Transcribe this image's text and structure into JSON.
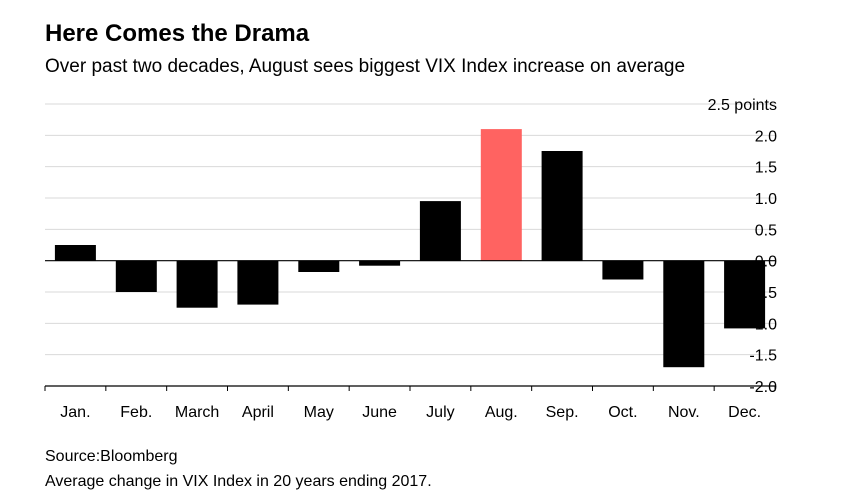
{
  "header": {
    "title": "Here Comes the Drama",
    "subtitle": "Over past two decades, August sees biggest VIX Index increase on average"
  },
  "footer": {
    "source": "Source:Bloomberg",
    "note": "Average change in VIX Index in 20 years ending 2017."
  },
  "colors": {
    "bar": "#000000",
    "highlight": "#ff6361",
    "grid": "#d9d9d9",
    "axis": "#000000"
  },
  "chart_data": {
    "type": "bar",
    "title": "Here Comes the Drama",
    "subtitle": "Over past two decades, August sees biggest VIX Index increase on average",
    "xlabel": "",
    "ylabel": "",
    "categories": [
      "Jan.",
      "Feb.",
      "March",
      "April",
      "May",
      "June",
      "July",
      "Aug.",
      "Sep.",
      "Oct.",
      "Nov.",
      "Dec."
    ],
    "values": [
      0.25,
      -0.5,
      -0.75,
      -0.7,
      -0.18,
      -0.08,
      0.95,
      2.1,
      1.75,
      -0.3,
      -1.7,
      -1.08
    ],
    "highlight_category": "Aug.",
    "ylim": [
      -2.0,
      2.5
    ],
    "yticks": [
      2.5,
      2.0,
      1.5,
      1.0,
      0.5,
      0.0,
      -0.5,
      -1.0,
      -1.5,
      -2.0
    ],
    "ytick_labels": [
      "2.5 points",
      "2.0",
      "1.5",
      "1.0",
      "0.5",
      "0.0",
      "-0.5",
      "-1.0",
      "-1.5",
      "-2.0"
    ],
    "y_axis_position": "right",
    "grid": true,
    "legend": "none"
  }
}
